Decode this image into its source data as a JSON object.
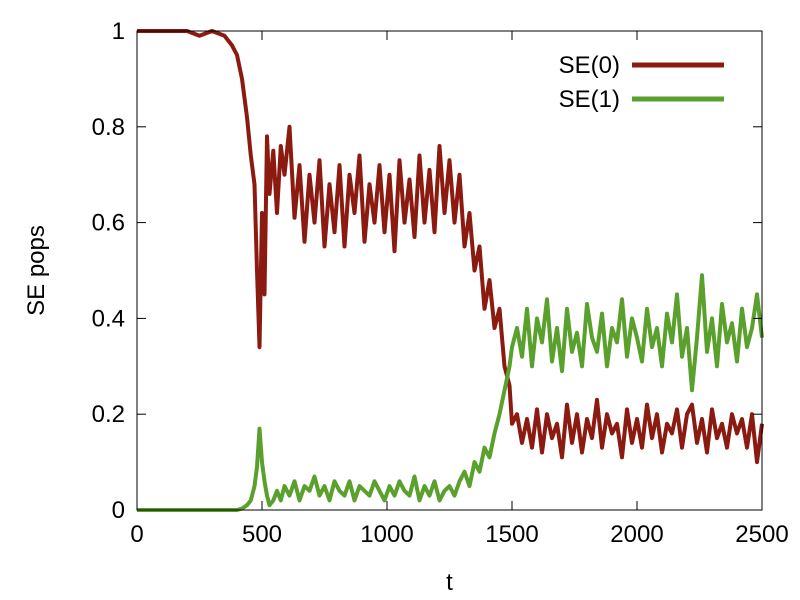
{
  "chart_data": {
    "type": "line",
    "title": "",
    "xlabel": "t",
    "ylabel": "SE pops",
    "xlim": [
      0,
      2500
    ],
    "ylim": [
      0,
      1
    ],
    "xticks": [
      0,
      500,
      1000,
      1500,
      2000,
      2500
    ],
    "xtick_labels": [
      "0",
      "500",
      "1000",
      "1500",
      "2000",
      "2500"
    ],
    "yticks": [
      0,
      0.2,
      0.4,
      0.6,
      0.8,
      1
    ],
    "ytick_labels": [
      "0",
      "0.2",
      "0.4",
      "0.6",
      "0.8",
      "1"
    ],
    "grid": false,
    "legend_position": "top-right",
    "series": [
      {
        "name": "SE(0)",
        "color": "#8b1a10",
        "x": [
          0,
          50,
          100,
          150,
          200,
          250,
          300,
          350,
          380,
          400,
          420,
          440,
          455,
          470,
          480,
          490,
          500,
          510,
          520,
          530,
          545,
          560,
          575,
          590,
          610,
          630,
          650,
          670,
          690,
          710,
          730,
          750,
          770,
          790,
          810,
          830,
          850,
          870,
          890,
          910,
          930,
          950,
          970,
          990,
          1010,
          1030,
          1050,
          1070,
          1090,
          1110,
          1130,
          1150,
          1170,
          1190,
          1210,
          1230,
          1250,
          1270,
          1290,
          1310,
          1330,
          1350,
          1370,
          1390,
          1410,
          1430,
          1450,
          1470,
          1490,
          1500,
          1520,
          1540,
          1560,
          1580,
          1600,
          1620,
          1640,
          1660,
          1680,
          1700,
          1720,
          1740,
          1760,
          1780,
          1800,
          1820,
          1840,
          1860,
          1880,
          1900,
          1920,
          1940,
          1960,
          1980,
          2000,
          2020,
          2040,
          2060,
          2080,
          2100,
          2120,
          2140,
          2160,
          2180,
          2200,
          2220,
          2240,
          2260,
          2280,
          2300,
          2320,
          2340,
          2360,
          2380,
          2400,
          2420,
          2440,
          2460,
          2480,
          2500
        ],
        "values": [
          1.0,
          1.0,
          1.0,
          1.0,
          1.0,
          0.99,
          1.0,
          0.99,
          0.97,
          0.95,
          0.9,
          0.82,
          0.74,
          0.68,
          0.5,
          0.34,
          0.62,
          0.45,
          0.78,
          0.66,
          0.75,
          0.62,
          0.76,
          0.7,
          0.8,
          0.61,
          0.72,
          0.56,
          0.7,
          0.6,
          0.73,
          0.55,
          0.68,
          0.58,
          0.72,
          0.55,
          0.7,
          0.62,
          0.74,
          0.56,
          0.68,
          0.6,
          0.72,
          0.58,
          0.7,
          0.54,
          0.73,
          0.6,
          0.69,
          0.57,
          0.74,
          0.6,
          0.71,
          0.58,
          0.76,
          0.62,
          0.73,
          0.6,
          0.7,
          0.55,
          0.62,
          0.5,
          0.55,
          0.42,
          0.48,
          0.38,
          0.42,
          0.3,
          0.26,
          0.18,
          0.2,
          0.14,
          0.19,
          0.13,
          0.21,
          0.12,
          0.2,
          0.15,
          0.18,
          0.11,
          0.22,
          0.14,
          0.2,
          0.12,
          0.19,
          0.15,
          0.23,
          0.13,
          0.2,
          0.16,
          0.18,
          0.11,
          0.21,
          0.14,
          0.19,
          0.13,
          0.22,
          0.15,
          0.2,
          0.12,
          0.18,
          0.16,
          0.21,
          0.13,
          0.2,
          0.22,
          0.14,
          0.19,
          0.12,
          0.21,
          0.15,
          0.18,
          0.13,
          0.2,
          0.16,
          0.19,
          0.13,
          0.2,
          0.1,
          0.18
        ]
      },
      {
        "name": "SE(1)",
        "color": "#5aa02c",
        "x": [
          0,
          50,
          100,
          150,
          200,
          250,
          300,
          350,
          380,
          400,
          420,
          440,
          455,
          470,
          480,
          490,
          500,
          510,
          520,
          530,
          545,
          560,
          575,
          590,
          610,
          630,
          650,
          670,
          690,
          710,
          730,
          750,
          770,
          790,
          810,
          830,
          850,
          870,
          890,
          910,
          930,
          950,
          970,
          990,
          1010,
          1030,
          1050,
          1070,
          1090,
          1110,
          1130,
          1150,
          1170,
          1190,
          1210,
          1230,
          1250,
          1270,
          1290,
          1310,
          1330,
          1350,
          1370,
          1390,
          1410,
          1430,
          1450,
          1470,
          1490,
          1500,
          1520,
          1540,
          1560,
          1580,
          1600,
          1620,
          1640,
          1660,
          1680,
          1700,
          1720,
          1740,
          1760,
          1780,
          1800,
          1820,
          1840,
          1860,
          1880,
          1900,
          1920,
          1940,
          1960,
          1980,
          2000,
          2020,
          2040,
          2060,
          2080,
          2100,
          2120,
          2140,
          2160,
          2180,
          2200,
          2220,
          2240,
          2260,
          2280,
          2300,
          2320,
          2340,
          2360,
          2380,
          2400,
          2420,
          2440,
          2460,
          2480,
          2500
        ],
        "values": [
          0.0,
          0.0,
          0.0,
          0.0,
          0.0,
          0.0,
          0.0,
          0.0,
          0.0,
          0.0,
          0.003,
          0.01,
          0.02,
          0.05,
          0.09,
          0.17,
          0.1,
          0.06,
          0.03,
          0.01,
          0.02,
          0.04,
          0.02,
          0.05,
          0.03,
          0.06,
          0.02,
          0.05,
          0.04,
          0.07,
          0.03,
          0.05,
          0.02,
          0.06,
          0.04,
          0.03,
          0.06,
          0.02,
          0.05,
          0.04,
          0.03,
          0.06,
          0.04,
          0.02,
          0.05,
          0.03,
          0.06,
          0.04,
          0.03,
          0.07,
          0.02,
          0.05,
          0.03,
          0.06,
          0.02,
          0.04,
          0.05,
          0.03,
          0.06,
          0.08,
          0.05,
          0.1,
          0.08,
          0.13,
          0.11,
          0.16,
          0.2,
          0.25,
          0.3,
          0.34,
          0.38,
          0.32,
          0.42,
          0.3,
          0.4,
          0.35,
          0.44,
          0.31,
          0.38,
          0.29,
          0.42,
          0.33,
          0.37,
          0.3,
          0.43,
          0.36,
          0.33,
          0.41,
          0.3,
          0.38,
          0.35,
          0.44,
          0.32,
          0.4,
          0.36,
          0.31,
          0.42,
          0.34,
          0.38,
          0.3,
          0.41,
          0.35,
          0.45,
          0.32,
          0.38,
          0.25,
          0.36,
          0.49,
          0.33,
          0.4,
          0.3,
          0.43,
          0.35,
          0.39,
          0.31,
          0.42,
          0.34,
          0.38,
          0.45,
          0.36
        ]
      }
    ]
  }
}
